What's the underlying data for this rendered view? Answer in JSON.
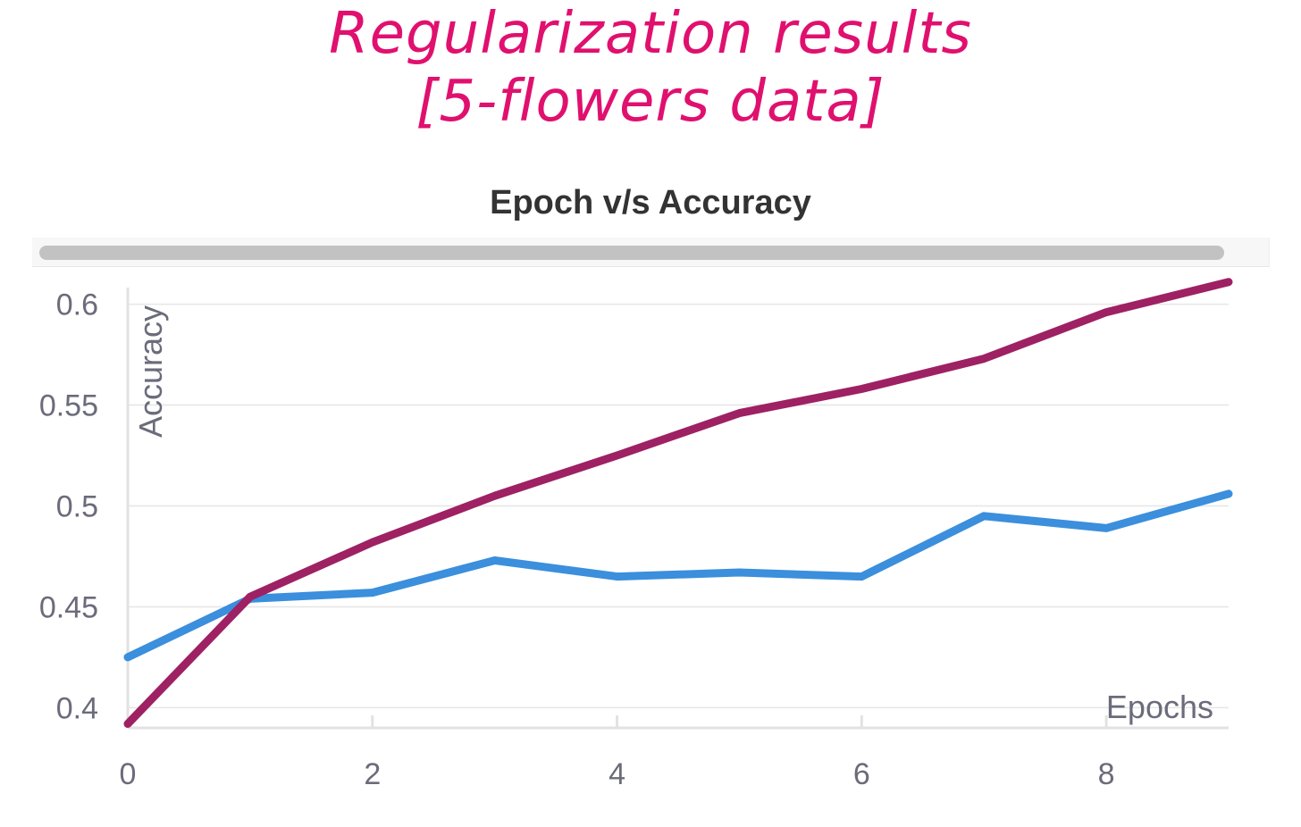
{
  "annotation": {
    "line1": "Regularization results",
    "line2": "[5-flowers data]",
    "color": "#e0106f"
  },
  "scrollbar": {
    "track_color": "#f7f7f7",
    "thumb_color": "#c2c2c2"
  },
  "chart_data": {
    "type": "line",
    "title": "Epoch v/s Accuracy",
    "xlabel": "Epochs",
    "ylabel": "Accuracy",
    "x": [
      0,
      1,
      2,
      3,
      4,
      5,
      6,
      7,
      8,
      9
    ],
    "xlim": [
      0,
      9
    ],
    "ylim": [
      0.39,
      0.61
    ],
    "xticks": [
      0,
      2,
      4,
      6,
      8
    ],
    "xtick_labels": [
      "0",
      "2",
      "4",
      "6",
      "8"
    ],
    "yticks": [
      0.4,
      0.45,
      0.5,
      0.55,
      0.6
    ],
    "ytick_labels": [
      "0.4",
      "0.45",
      "0.5",
      "0.55",
      "0.6"
    ],
    "grid": true,
    "legend": "none",
    "series": [
      {
        "color": "#3b8fdc",
        "values": [
          0.425,
          0.454,
          0.457,
          0.473,
          0.465,
          0.467,
          0.465,
          0.495,
          0.489,
          0.506
        ]
      },
      {
        "color": "#9e2163",
        "values": [
          0.392,
          0.455,
          0.482,
          0.505,
          0.525,
          0.546,
          0.558,
          0.573,
          0.596,
          0.611
        ]
      }
    ]
  }
}
